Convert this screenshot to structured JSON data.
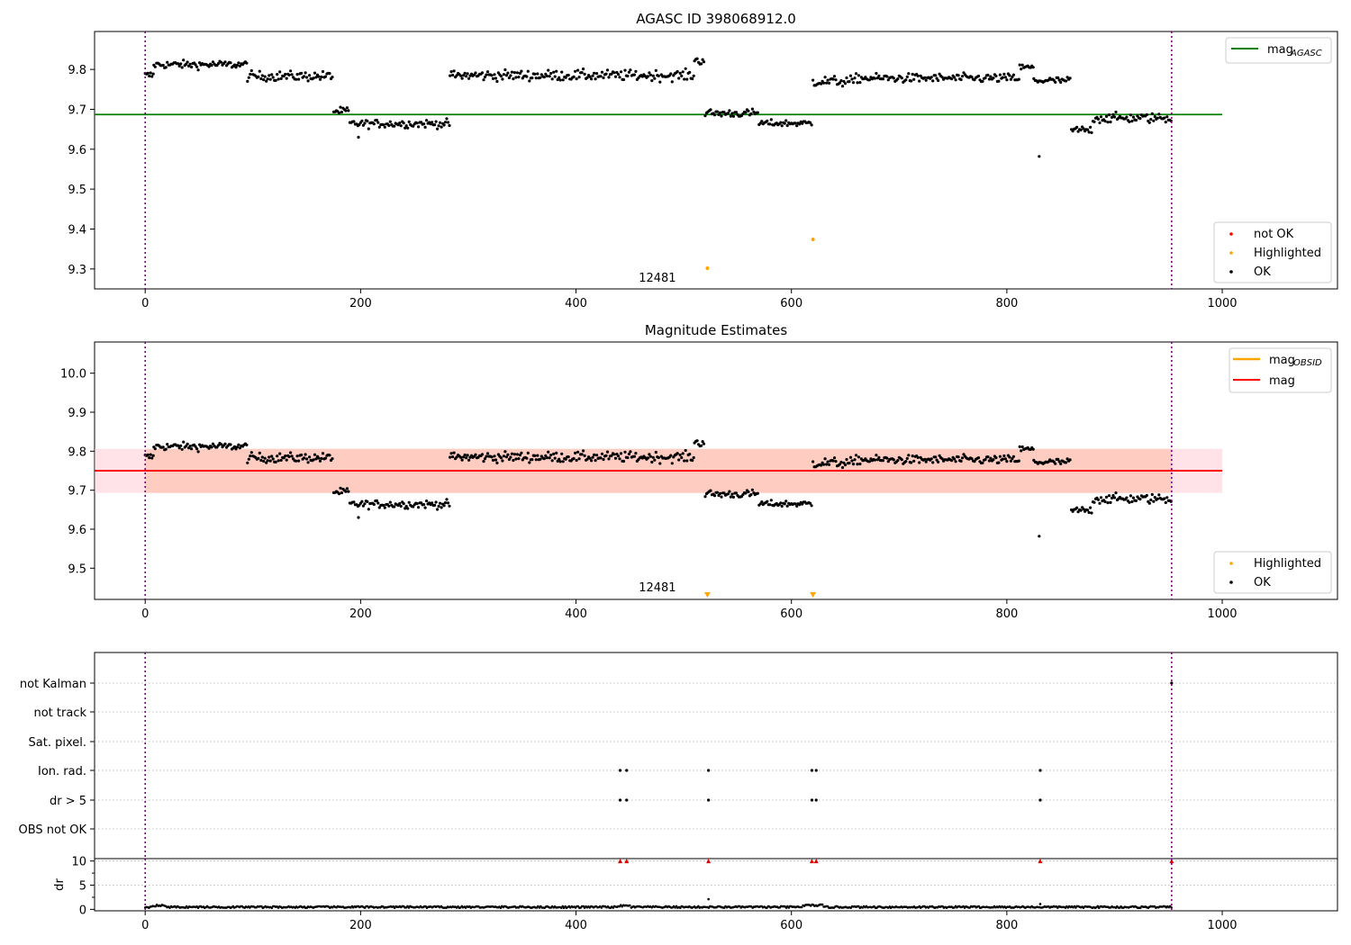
{
  "figure": {
    "title": "AGASC ID 398068912.0"
  },
  "chart_data": [
    {
      "type": "scatter",
      "title": "AGASC ID 398068912.0",
      "xlabel": "",
      "ylabel": "",
      "xlim": [
        -47,
        1107
      ],
      "ylim": [
        9.25,
        9.895
      ],
      "xticks": [
        0,
        200,
        400,
        600,
        800,
        1000
      ],
      "yticks": [
        9.3,
        9.4,
        9.5,
        9.6,
        9.7,
        9.8
      ],
      "reference_line": {
        "name": "mag_AGASC",
        "y": 9.687,
        "x_range": [
          -47,
          1000
        ],
        "color": "#008000"
      },
      "vlines": [
        0,
        953
      ],
      "vline_color": "#800080",
      "annotation": {
        "text": "12481",
        "x": 475,
        "y": 9.272
      },
      "highlighted_points": [
        {
          "x": 522,
          "y": 9.302
        },
        {
          "x": 620,
          "y": 9.374
        }
      ],
      "legend_lines": [
        {
          "label": "mag",
          "sub": "AGASC",
          "color": "#008000"
        }
      ],
      "legend_points": [
        {
          "label": "not OK",
          "color": "#ff0000"
        },
        {
          "label": "Highlighted",
          "color": "#ffa500"
        },
        {
          "label": "OK",
          "color": "#000000"
        }
      ],
      "legend_lines_position": "top-right",
      "legend_points_position": "bottom-right",
      "grid": false
    },
    {
      "type": "scatter",
      "title": "Magnitude Estimates",
      "xlabel": "",
      "ylabel": "",
      "xlim": [
        -47,
        1107
      ],
      "ylim": [
        9.42,
        10.08
      ],
      "xticks": [
        0,
        200,
        400,
        600,
        800,
        1000
      ],
      "yticks": [
        9.5,
        9.6,
        9.7,
        9.8,
        9.9,
        10.0
      ],
      "mean_line": {
        "name": "mag",
        "y": 9.75,
        "x_range": [
          -47,
          1000
        ],
        "color": "#ff0000"
      },
      "band": {
        "y_low": 9.693,
        "y_high": 9.806,
        "x_range": [
          -47,
          1000
        ]
      },
      "obsid_band": {
        "y_low": 9.693,
        "y_high": 9.806,
        "x_range": [
          0,
          953
        ]
      },
      "vlines": [
        0,
        953
      ],
      "vline_color": "#800080",
      "annotation": {
        "text": "12481",
        "x": 475,
        "y": 9.443
      },
      "highlighted_markers": [
        {
          "x": 522
        },
        {
          "x": 620
        }
      ],
      "legend_lines": [
        {
          "label": "mag",
          "sub": "OBSID",
          "color": "#ffa500"
        },
        {
          "label": "mag",
          "sub": "",
          "color": "#ff0000"
        }
      ],
      "legend_points": [
        {
          "label": "Highlighted",
          "color": "#ffa500"
        },
        {
          "label": "OK",
          "color": "#000000"
        }
      ],
      "legend_lines_position": "top-right",
      "legend_points_position": "bottom-right",
      "grid": false
    },
    {
      "type": "scatter",
      "title": "",
      "xlabel": "",
      "ylabel": "",
      "xlim": [
        -47,
        1107
      ],
      "xticks": [
        0,
        200,
        400,
        600,
        800,
        1000
      ],
      "flag_rows": [
        "not Kalman",
        "not track",
        "Sat. pixel.",
        "Ion. rad.",
        "dr > 5",
        "OBS not OK"
      ],
      "flag_points": {
        "not Kalman": [
          953
        ],
        "not track": [],
        "Sat. pixel.": [],
        "Ion. rad.": [
          441,
          447,
          523,
          619,
          623,
          831
        ],
        "dr > 5": [
          441,
          447,
          523,
          619,
          623,
          831
        ],
        "OBS not OK": []
      },
      "vlines": [
        0,
        953
      ],
      "vline_color": "#800080",
      "grid": "y-dotted"
    },
    {
      "type": "scatter",
      "title": "",
      "xlabel": "",
      "ylabel": "dr",
      "xlim": [
        -47,
        1107
      ],
      "ylim": [
        -0.3,
        10.5
      ],
      "xticks": [
        0,
        200,
        400,
        600,
        800,
        1000
      ],
      "yticks": [
        0,
        5,
        10
      ],
      "clipped_markers_x": [
        441,
        447,
        523,
        619,
        623,
        831,
        953
      ],
      "outliers": [
        {
          "x": 523,
          "y": 2.1
        },
        {
          "x": 831,
          "y": 1.1
        }
      ],
      "vlines": [
        0,
        953
      ],
      "vline_color": "#800080",
      "grid": "y-dotted"
    }
  ]
}
